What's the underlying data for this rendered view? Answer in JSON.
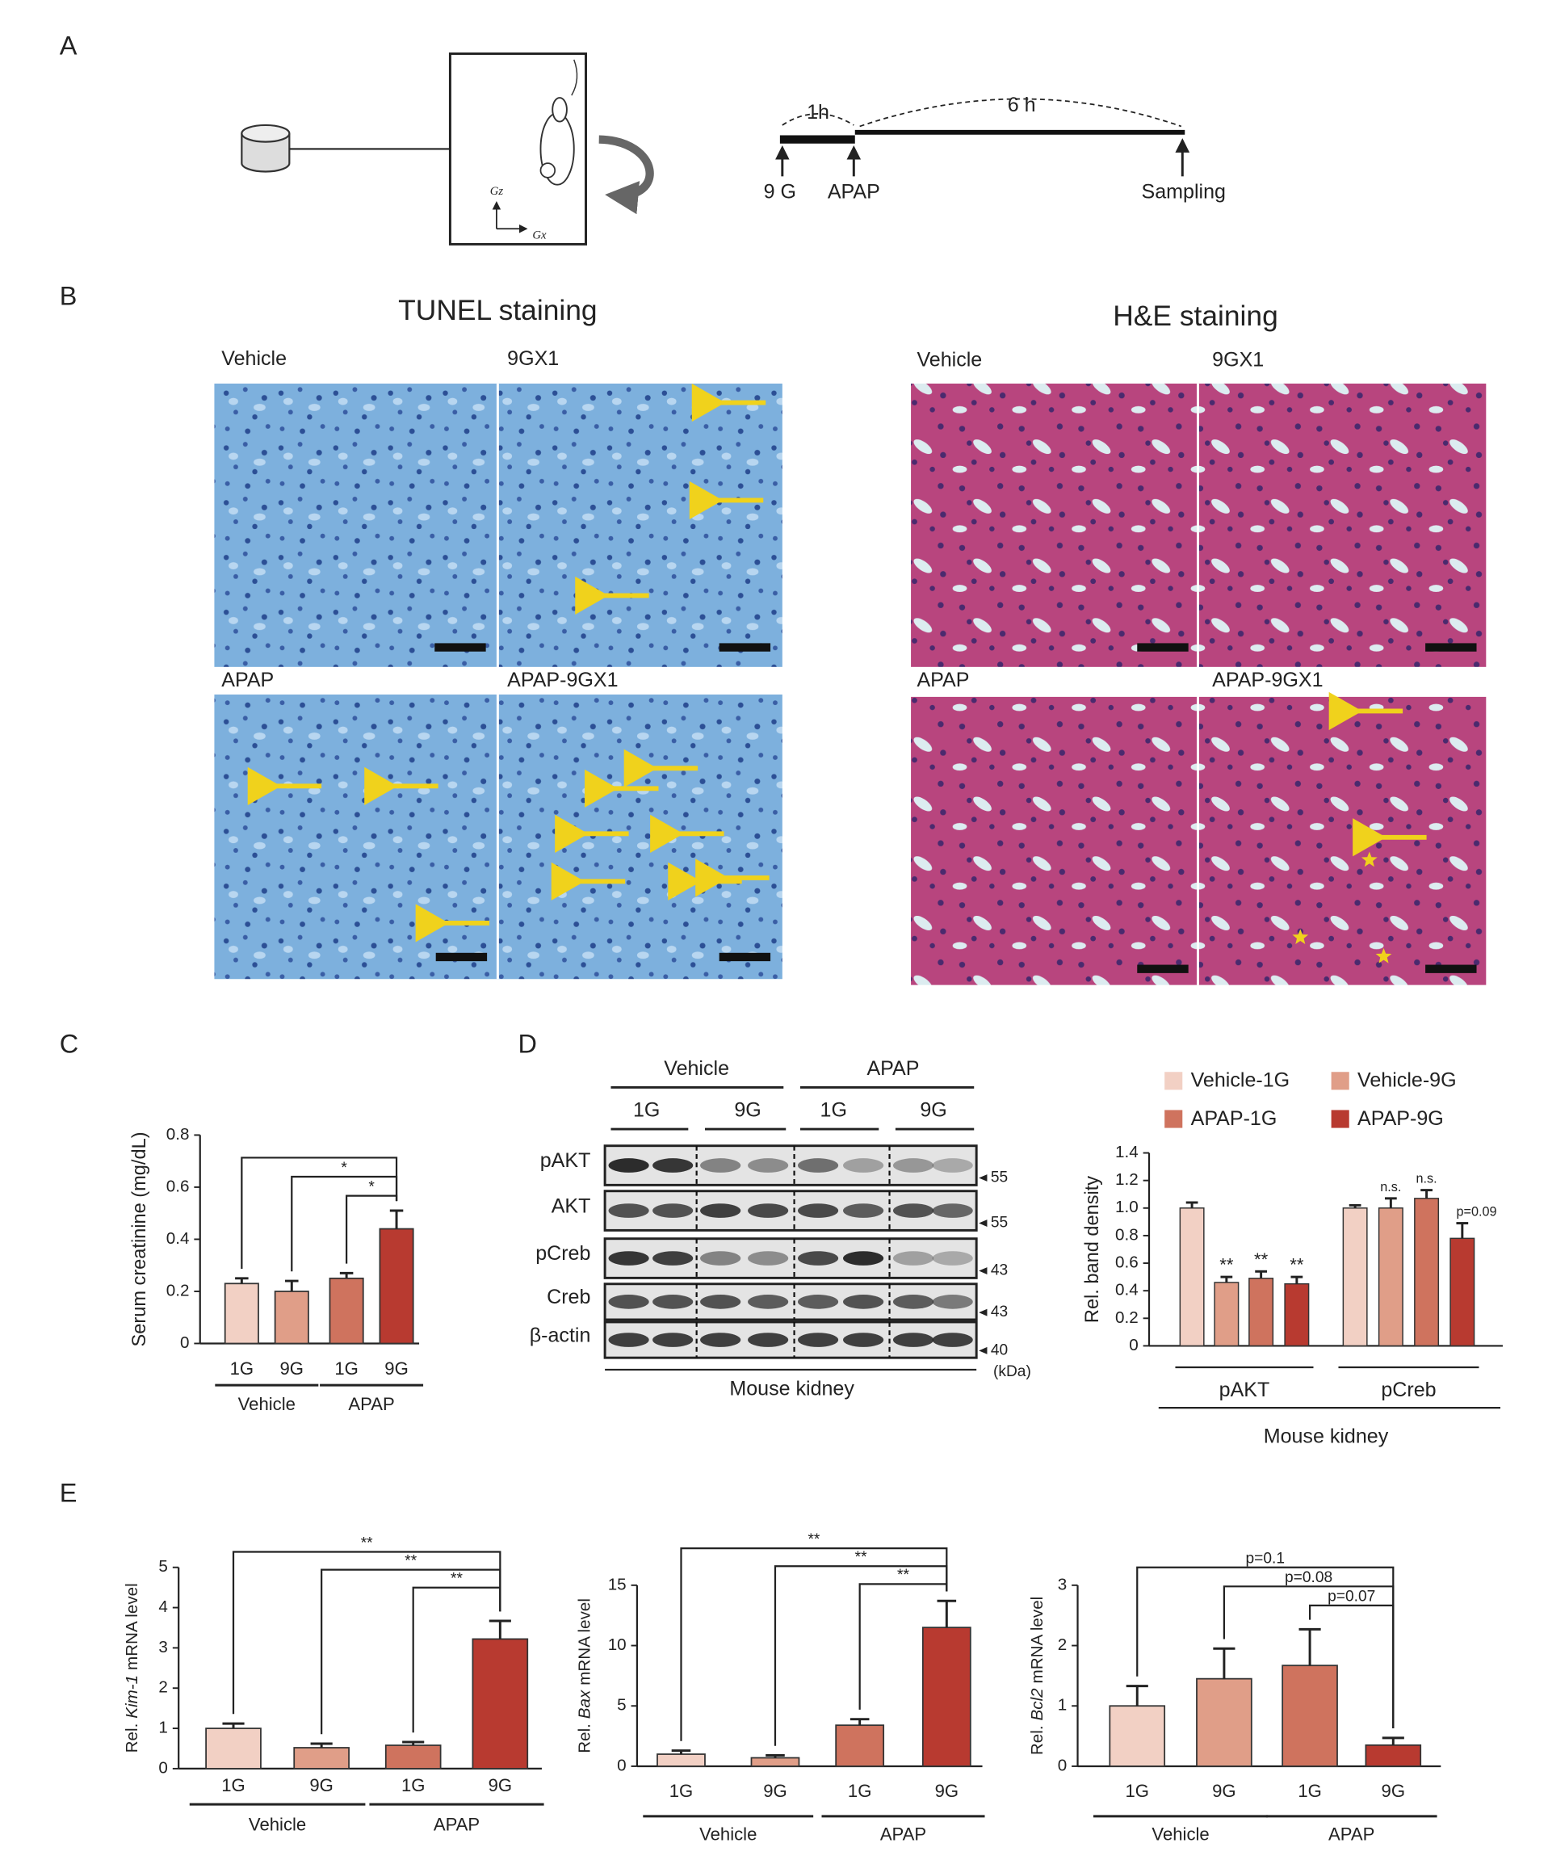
{
  "panel_labels": [
    "A",
    "B",
    "C",
    "D",
    "E"
  ],
  "schematic": {
    "gz": "Gz",
    "gx": "Gx",
    "interval1": "1h",
    "interval2": "6 h",
    "events": [
      "9 G",
      "APAP",
      "Sampling"
    ]
  },
  "histology": {
    "tunel": {
      "title": "TUNEL staining",
      "panels": [
        "Vehicle",
        "9GX1",
        "APAP",
        "APAP-9GX1"
      ]
    },
    "he": {
      "title": "H&E staining",
      "panels": [
        "Vehicle",
        "9GX1",
        "APAP",
        "APAP-9GX1"
      ]
    }
  },
  "blot": {
    "groups": [
      "Vehicle",
      "APAP"
    ],
    "lanes": [
      "1G",
      "9G",
      "1G",
      "9G"
    ],
    "rows": [
      {
        "label": "pAKT",
        "marker": 55
      },
      {
        "label": "AKT",
        "marker": 55
      },
      {
        "label": "pCreb",
        "marker": 43
      },
      {
        "label": "Creb",
        "marker": 43
      },
      {
        "label": "β-actin",
        "marker": 40
      }
    ],
    "unit": "(kDa)",
    "caption": "Mouse kidney"
  },
  "chart_data": [
    {
      "type": "bar",
      "ylabel": "Serum creatinine (mg/dL)",
      "categories": [
        "1G",
        "9G",
        "1G",
        "9G"
      ],
      "groups": [
        "Vehicle",
        "APAP"
      ],
      "values": [
        0.23,
        0.2,
        0.25,
        0.44
      ],
      "errors": [
        0.02,
        0.04,
        0.02,
        0.07
      ],
      "colors": [
        "#f2d0c4",
        "#e09e88",
        "#cf735e",
        "#b83a30"
      ],
      "ylim": [
        0,
        0.8
      ],
      "yticks": [
        0,
        0.2,
        0.4,
        0.6,
        0.8
      ],
      "significance": [
        null,
        "*",
        "*"
      ]
    },
    {
      "type": "grouped-bar",
      "ylabel": "Rel. band density",
      "categories": [
        "pAKT",
        "pCreb"
      ],
      "xlabel": "Mouse kidney",
      "series": [
        {
          "name": "Vehicle-1G",
          "color": "#f2d0c4",
          "values": [
            1.0,
            1.0
          ],
          "errors": [
            0.04,
            0.02
          ],
          "annotations": [
            null,
            null
          ]
        },
        {
          "name": "Vehicle-9G",
          "color": "#e09e88",
          "values": [
            0.46,
            1.0
          ],
          "errors": [
            0.04,
            0.07
          ],
          "annotations": [
            "**",
            "n.s."
          ]
        },
        {
          "name": "APAP-1G",
          "color": "#cf735e",
          "values": [
            0.49,
            1.07
          ],
          "errors": [
            0.05,
            0.06
          ],
          "annotations": [
            "**",
            "n.s."
          ]
        },
        {
          "name": "APAP-9G",
          "color": "#b83a30",
          "values": [
            0.45,
            0.78
          ],
          "errors": [
            0.05,
            0.11
          ],
          "annotations": [
            "**",
            "p=0.09"
          ]
        }
      ],
      "ylim": [
        0,
        1.4
      ],
      "yticks": [
        0,
        0.2,
        0.4,
        0.6,
        0.8,
        {
          "value": 1,
          "label": "1.0"
        },
        1.2,
        1.4
      ],
      "legend": "top"
    },
    {
      "type": "bar",
      "ylabel": [
        "Rel.",
        "Kim-1",
        "mRNA level"
      ],
      "categories": [
        "1G",
        "9G",
        "1G",
        "9G"
      ],
      "groups": [
        "Vehicle",
        "APAP"
      ],
      "values": [
        1.0,
        0.52,
        0.58,
        3.22
      ],
      "errors": [
        0.12,
        0.1,
        0.08,
        0.45
      ],
      "colors": [
        "#f2d0c4",
        "#e09e88",
        "#cf735e",
        "#b83a30"
      ],
      "ylim": [
        0,
        5
      ],
      "yticks": [
        0,
        1,
        2,
        3,
        4,
        5
      ],
      "significance": [
        "**",
        "**",
        "**"
      ]
    },
    {
      "type": "bar",
      "ylabel": [
        "Rel.",
        "Bax",
        "mRNA level"
      ],
      "categories": [
        "1G",
        "9G",
        "1G",
        "9G"
      ],
      "groups": [
        "Vehicle",
        "APAP"
      ],
      "values": [
        1.0,
        0.7,
        3.4,
        11.5
      ],
      "errors": [
        0.3,
        0.2,
        0.5,
        2.2
      ],
      "colors": [
        "#f2d0c4",
        "#e09e88",
        "#cf735e",
        "#b83a30"
      ],
      "ylim": [
        0,
        15
      ],
      "yticks": [
        0,
        5,
        10,
        15
      ],
      "significance": [
        "**",
        "**",
        "**"
      ]
    },
    {
      "type": "bar",
      "ylabel": [
        "Rel.",
        "Bcl2",
        "mRNA level"
      ],
      "categories": [
        "1G",
        "9G",
        "1G",
        "9G"
      ],
      "groups": [
        "Vehicle",
        "APAP"
      ],
      "values": [
        1.0,
        1.45,
        1.67,
        0.35
      ],
      "errors": [
        0.33,
        0.5,
        0.6,
        0.12
      ],
      "colors": [
        "#f2d0c4",
        "#e09e88",
        "#cf735e",
        "#b83a30"
      ],
      "ylim": [
        0,
        3
      ],
      "yticks": [
        0,
        1,
        2,
        3
      ],
      "significance": [
        "p=0.1",
        "p=0.08",
        "p=0.07"
      ]
    }
  ]
}
